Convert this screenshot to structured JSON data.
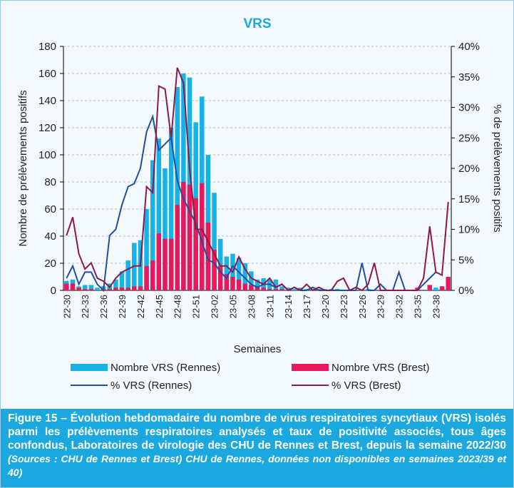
{
  "chart_data": {
    "type": "bar_line",
    "title": "VRS",
    "y_label": "Nombre de prélèvements positifs",
    "y2_label": "% de prélèvements positifs",
    "x_label": "Semaines",
    "categories": [
      "22-30",
      null,
      null,
      "22-33",
      null,
      null,
      "22-36",
      null,
      null,
      "22-39",
      null,
      null,
      "22-42",
      null,
      null,
      "22-45",
      null,
      null,
      "22-48",
      null,
      null,
      "22-51",
      null,
      null,
      "23-02",
      null,
      null,
      "23-05",
      null,
      null,
      "23-08",
      null,
      null,
      "23-11",
      null,
      null,
      "23-14",
      null,
      null,
      "23-17",
      null,
      null,
      "23-20",
      null,
      null,
      "23-23",
      null,
      null,
      "23-26",
      null,
      null,
      "23-29",
      null,
      null,
      "23-32",
      null,
      null,
      "23-35",
      null,
      null,
      "23-38",
      null,
      null
    ],
    "ylim": [
      0,
      180
    ],
    "yticks": [
      0,
      20,
      40,
      60,
      80,
      100,
      120,
      140,
      160,
      180
    ],
    "y2lim": [
      0,
      40
    ],
    "y2ticks": [
      {
        "value": 0,
        "label": "0%"
      },
      {
        "value": 5,
        "label": "5%"
      },
      {
        "value": 10,
        "label": "10%"
      },
      {
        "value": 15,
        "label": "15%"
      },
      {
        "value": 20,
        "label": "20%"
      },
      {
        "value": 25,
        "label": "25%"
      },
      {
        "value": 30,
        "label": "30%"
      },
      {
        "value": 35,
        "label": "35%"
      },
      {
        "value": 40,
        "label": "40%"
      }
    ],
    "grid": true,
    "series": [
      {
        "name": "Nombre VRS (Rennes)",
        "kind": "bar",
        "color": "#17b2e6",
        "values": [
          7,
          8,
          3,
          4,
          4,
          2,
          3,
          5,
          8,
          14,
          22,
          35,
          37,
          60,
          96,
          112,
          90,
          120,
          150,
          160,
          157,
          124,
          143,
          100,
          72,
          38,
          25,
          27,
          24,
          20,
          14,
          8,
          9,
          8,
          8,
          3,
          2,
          1,
          2,
          1,
          1,
          1,
          1,
          1,
          1,
          0,
          0,
          0,
          0,
          1,
          0,
          0,
          0,
          0,
          0,
          0,
          0,
          0,
          0,
          3,
          2,
          null,
          null
        ]
      },
      {
        "name": "Nombre VRS (Brest)",
        "kind": "bar",
        "color": "#e8185d",
        "values": [
          5,
          5,
          2,
          1,
          1,
          0,
          1,
          1,
          2,
          2,
          2,
          3,
          3,
          18,
          22,
          42,
          38,
          38,
          63,
          80,
          78,
          68,
          79,
          50,
          30,
          18,
          12,
          10,
          8,
          5,
          4,
          3,
          2,
          1,
          1,
          1,
          0,
          0,
          0,
          0,
          0,
          0,
          0,
          0,
          0,
          0,
          0,
          0,
          0,
          0,
          0,
          0,
          0,
          0,
          0,
          0,
          0,
          2,
          0,
          4,
          0,
          3,
          10
        ]
      },
      {
        "name": "% VRS (Rennes)",
        "kind": "line",
        "axis": "y2",
        "color": "#1f4f9e",
        "values": [
          2,
          4,
          1,
          3,
          3,
          1,
          0,
          9,
          10,
          14,
          17,
          17.5,
          20,
          26,
          28.5,
          23,
          24,
          25,
          18,
          15,
          13,
          11,
          8,
          5,
          4.5,
          3,
          2,
          4,
          3,
          2,
          1,
          0.5,
          1,
          1,
          0.5,
          1,
          0,
          0.5,
          0,
          0,
          0.5,
          0,
          0,
          0,
          0,
          0,
          0,
          0,
          4.5,
          0,
          0,
          1,
          0,
          0,
          3,
          0,
          0,
          0,
          1,
          2,
          3,
          null,
          null
        ]
      },
      {
        "name": "% VRS (Brest)",
        "kind": "line",
        "axis": "y2",
        "color": "#8c1a48",
        "values": [
          9,
          12,
          6,
          3.5,
          4.5,
          2,
          1.5,
          0.5,
          2,
          3,
          3.5,
          4,
          4,
          17,
          16,
          33.5,
          33,
          25,
          36.5,
          34,
          20,
          10,
          10,
          8,
          6,
          4,
          4,
          3,
          5.5,
          3.5,
          2,
          1.5,
          1,
          2,
          0.5,
          1,
          0,
          0.5,
          0,
          1,
          0,
          0.5,
          0,
          0,
          1.5,
          2,
          0,
          0.5,
          0,
          1,
          4.5,
          0,
          0,
          0,
          0,
          0,
          0,
          0,
          2,
          10.5,
          3,
          2.5,
          14.5
        ]
      }
    ]
  },
  "caption": {
    "main": "Figure 15 – Évolution hebdomadaire du nombre de virus respiratoires syncytiaux (VRS) isolés parmi les prélèvements respiratoires analysés et taux de positivité associés, tous âges confondus, Laboratoires de virologie des CHU de Rennes et Brest, depuis la semaine 2022/30",
    "note": "(Sources : CHU de Rennes et Brest)  CHU de Rennes, données non disponibles en semaines 2023/39 et 40)"
  }
}
